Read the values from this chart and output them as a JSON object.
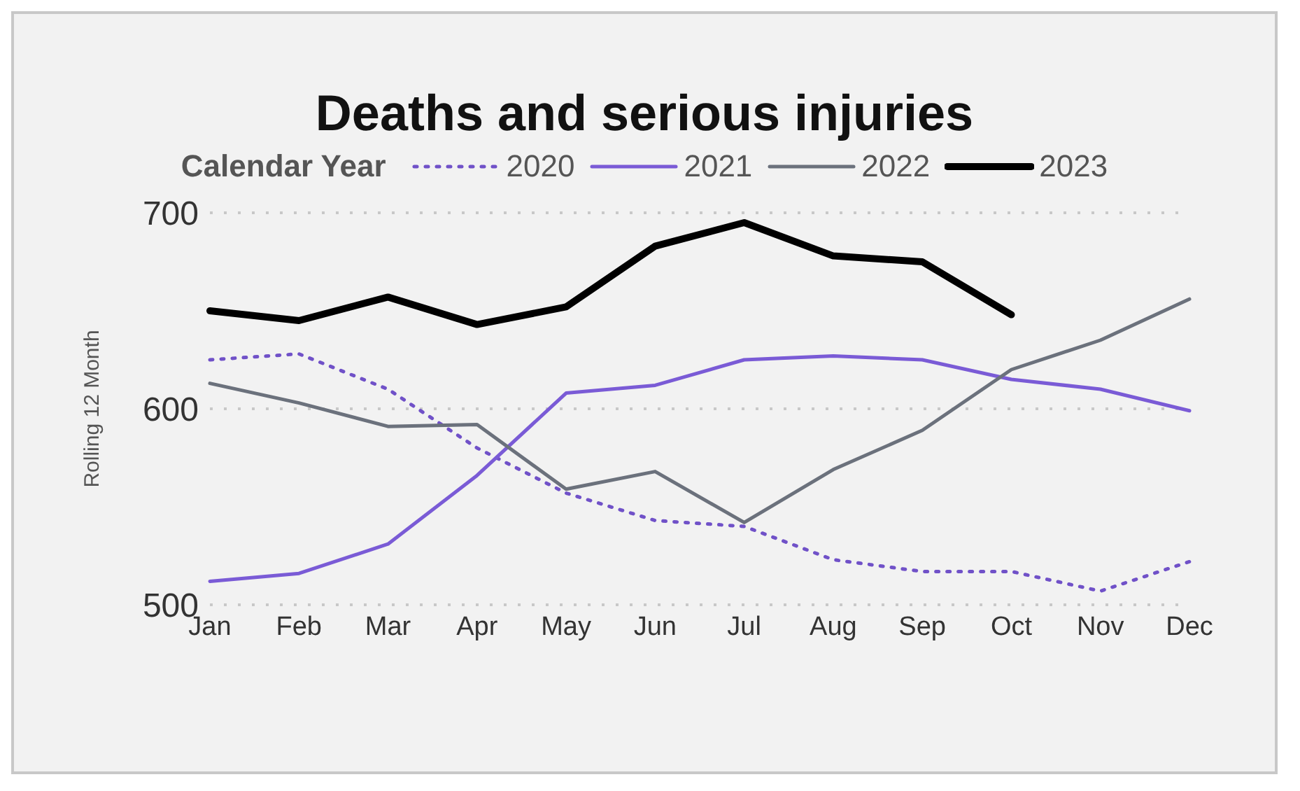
{
  "chart_data": {
    "type": "line",
    "title": "Deaths and serious injuries",
    "legend_title": "Calendar Year",
    "ylabel": "Rolling 12 Month",
    "categories": [
      "Jan",
      "Feb",
      "Mar",
      "Apr",
      "May",
      "Jun",
      "Jul",
      "Aug",
      "Sep",
      "Oct",
      "Nov",
      "Dec"
    ],
    "series": [
      {
        "name": "2020",
        "color": "#7051c8",
        "line_style": "dotted",
        "values": [
          625,
          628,
          610,
          580,
          557,
          543,
          540,
          523,
          517,
          517,
          507,
          522
        ]
      },
      {
        "name": "2021",
        "color": "#7a5bd6",
        "line_style": "solid",
        "values": [
          512,
          516,
          531,
          566,
          608,
          612,
          625,
          627,
          625,
          615,
          610,
          599
        ]
      },
      {
        "name": "2022",
        "color": "#6b717c",
        "line_style": "solid",
        "values": [
          613,
          603,
          591,
          592,
          559,
          568,
          542,
          569,
          589,
          620,
          635,
          656
        ]
      },
      {
        "name": "2023",
        "color": "#000000",
        "line_style": "solid",
        "values": [
          650,
          645,
          657,
          643,
          652,
          683,
          695,
          678,
          675,
          648,
          null,
          null
        ]
      }
    ],
    "ylim": [
      500,
      700
    ],
    "yticks": [
      500,
      600,
      700
    ],
    "grid": "y",
    "legend": "top",
    "marker": "none"
  }
}
